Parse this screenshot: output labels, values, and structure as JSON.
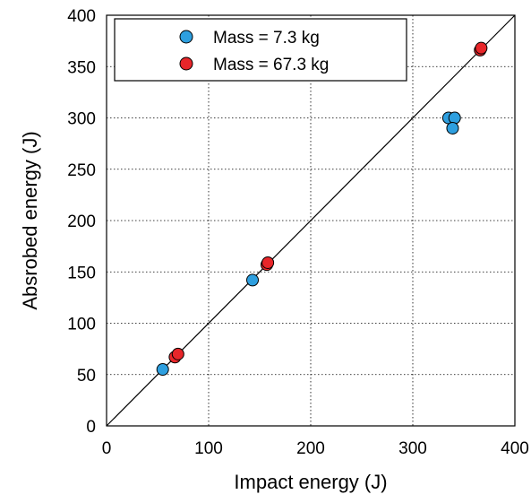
{
  "chart_data": {
    "type": "scatter",
    "xlabel": "Impact energy (J)",
    "ylabel": "Absrobed energy (J)",
    "xlim": [
      0,
      400
    ],
    "ylim": [
      0,
      400
    ],
    "x_ticks": [
      0,
      100,
      200,
      300,
      400
    ],
    "y_ticks": [
      0,
      50,
      100,
      150,
      200,
      250,
      300,
      350,
      400
    ],
    "grid": true,
    "grid_style": "dotted",
    "legend_position": "top-left",
    "reference_line": {
      "from": [
        0,
        0
      ],
      "to": [
        400,
        400
      ]
    },
    "series": [
      {
        "name": "Mass = 7.3 kg",
        "color": "#2e9fdf",
        "points": [
          {
            "x": 55,
            "y": 55
          },
          {
            "x": 143,
            "y": 142
          },
          {
            "x": 335,
            "y": 300
          },
          {
            "x": 341,
            "y": 300
          },
          {
            "x": 339,
            "y": 290
          }
        ]
      },
      {
        "name": "Mass = 67.3 kg",
        "color": "#e8262a",
        "points": [
          {
            "x": 67,
            "y": 67
          },
          {
            "x": 70,
            "y": 70
          },
          {
            "x": 157,
            "y": 157
          },
          {
            "x": 158,
            "y": 159
          },
          {
            "x": 366,
            "y": 366
          },
          {
            "x": 367,
            "y": 368
          }
        ]
      }
    ]
  }
}
